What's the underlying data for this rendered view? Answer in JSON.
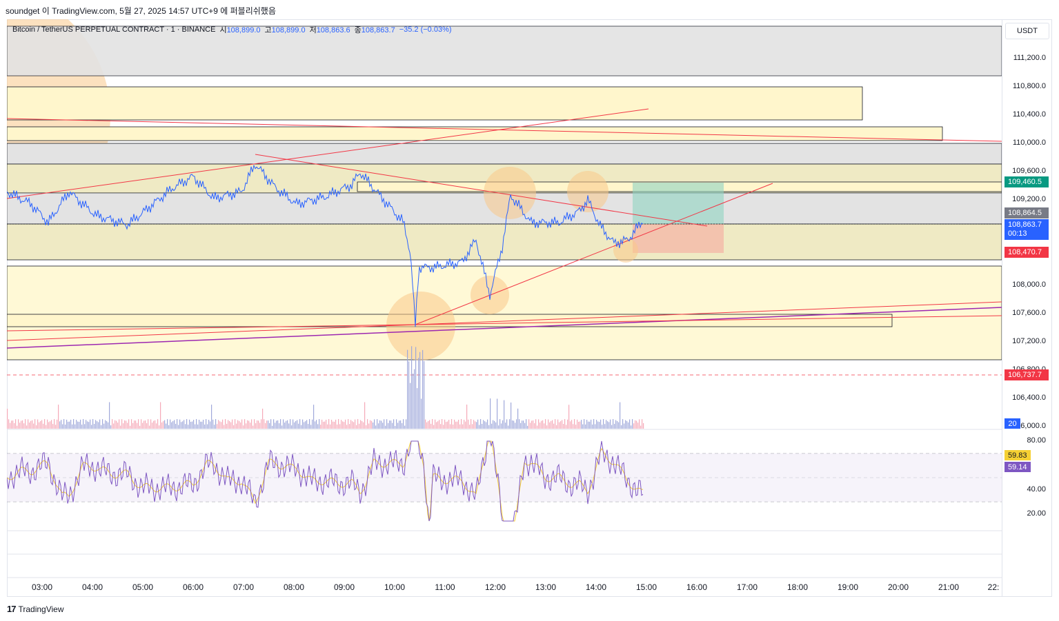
{
  "header": {
    "text": "soundget 이 TradingView.com, 5월 27, 2025 14:57 UTC+9 에 퍼블리쉬했음"
  },
  "legend": {
    "symbol": "Bitcoin / TetherUS PERPETUAL CONTRACT · 1 · BINANCE",
    "o_label": "시",
    "o_value": "108,899.0",
    "h_label": "고",
    "h_value": "108,899.0",
    "l_label": "저",
    "l_value": "108,863.6",
    "c_label": "종",
    "c_value": "108,863.7",
    "change": "−35.2 (−0.03%)"
  },
  "price_axis": {
    "currency": "USDT",
    "ticks": [
      "111,200.0",
      "110,800.0",
      "110,400.0",
      "110,000.0",
      "109,600.0",
      "109,200.0",
      "108,000.0",
      "107,600.0",
      "107,200.0",
      "106,800.0",
      "106,400.0",
      "106,000.0"
    ],
    "tags": [
      {
        "label": "109,460.5",
        "color": "#089981"
      },
      {
        "label": "108,864.5",
        "color": "#787b86"
      },
      {
        "label": "108,863.7",
        "sub": "00:13",
        "color": "#2962ff"
      },
      {
        "label": "108,470.7",
        "color": "#f23645"
      },
      {
        "label": "106,737.7",
        "color": "#f23645"
      }
    ],
    "volume_tag": "20"
  },
  "rsi": {
    "ticks": [
      "80.00",
      "40.00",
      "20.00"
    ],
    "value_ma": "59.83",
    "value_rsi": "59.14",
    "ma_color": "#f5d033",
    "rsi_color": "#7e57c2"
  },
  "time_axis": [
    "03:00",
    "04:00",
    "05:00",
    "06:00",
    "07:00",
    "08:00",
    "09:00",
    "10:00",
    "11:00",
    "12:00",
    "13:00",
    "14:00",
    "15:00",
    "16:00",
    "17:00",
    "18:00",
    "19:00",
    "20:00",
    "21:00",
    "22:"
  ],
  "brand": {
    "logo": "17",
    "name": "TradingView"
  },
  "colors": {
    "up": "#089981",
    "down": "#f23645",
    "candle": "#2962ff",
    "zone_yellow": "#fff9d6",
    "zone_gray": "#e3e3e3",
    "trend": "#f23645",
    "circle": "#f9c98a"
  }
}
